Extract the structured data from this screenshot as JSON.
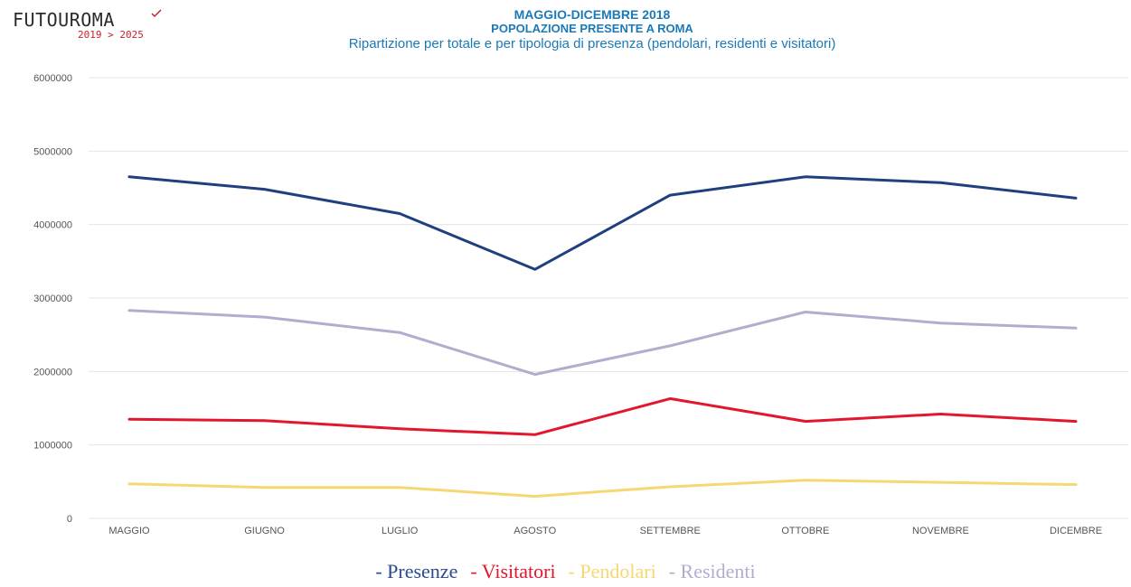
{
  "logo": {
    "word": "FUTOUROMA",
    "years": "2019 > 2025"
  },
  "titles": {
    "line1": "MAGGIO-DICEMBRE 2018",
    "line2": "POPOLAZIONE PRESENTE A ROMA",
    "line3": "Ripartizione per totale e per tipologia di presenza (pendolari, residenti e visitatori)"
  },
  "chart_data": {
    "type": "line",
    "categories": [
      "MAGGIO",
      "GIUGNO",
      "LUGLIO",
      "AGOSTO",
      "SETTEMBRE",
      "OTTOBRE",
      "NOVEMBRE",
      "DICEMBRE"
    ],
    "ylim": [
      0,
      6000000
    ],
    "yticks": [
      "0",
      "1000000",
      "2000000",
      "3000000",
      "4000000",
      "5000000",
      "6000000"
    ],
    "grid": true,
    "legend_position": "bottom",
    "series": [
      {
        "name": "Presenze",
        "color": "#1f3f7f",
        "values": [
          4650000,
          4480000,
          4150000,
          3390000,
          4400000,
          4650000,
          4570000,
          4360000
        ]
      },
      {
        "name": "Visitatori",
        "color": "#e3172c",
        "values": [
          1350000,
          1330000,
          1220000,
          1140000,
          1630000,
          1320000,
          1420000,
          1320000
        ]
      },
      {
        "name": "Pendolari",
        "color": "#f7d774",
        "values": [
          470000,
          420000,
          420000,
          300000,
          430000,
          520000,
          490000,
          460000
        ]
      },
      {
        "name": "Residenti",
        "color": "#b4acce",
        "values": [
          2830000,
          2740000,
          2530000,
          1960000,
          2350000,
          2810000,
          2660000,
          2590000
        ]
      }
    ],
    "legend": [
      {
        "label": "- Presenze",
        "color": "#2c4a8e"
      },
      {
        "label": "- Visitatori",
        "color": "#e3172c"
      },
      {
        "label": "- Pendolari",
        "color": "#f7d774"
      },
      {
        "label": "- Residenti",
        "color": "#b4acce"
      }
    ]
  }
}
